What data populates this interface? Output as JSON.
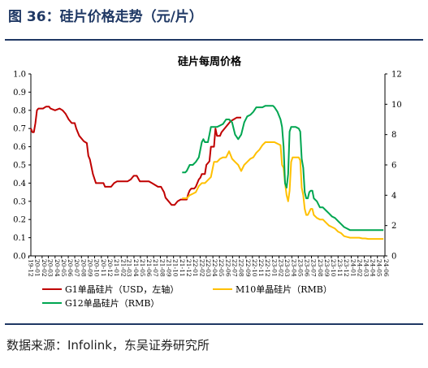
{
  "figure": {
    "title": "图 36：硅片价格走势（元/片）",
    "source": "数据来源：Infolink，东吴证券研究所"
  },
  "chart_data": {
    "type": "line",
    "title": "硅片每周价格",
    "x_date_range": [
      "2019-12-11",
      "2024-06-05"
    ],
    "xticks": [
      "19-12",
      "20-01",
      "20-02",
      "20-03",
      "20-04",
      "20-05",
      "20-06",
      "20-07",
      "20-08",
      "20-09",
      "20-10",
      "20-11",
      "20-12",
      "21-01",
      "21-02",
      "21-03",
      "21-04",
      "21-05",
      "21-06",
      "21-07",
      "21-08",
      "21-09",
      "21-10",
      "21-11",
      "21-12",
      "22-01",
      "22-02",
      "22-03",
      "22-04",
      "22-05",
      "22-06",
      "22-07",
      "22-08",
      "22-09",
      "22-10",
      "22-11",
      "22-12",
      "23-01",
      "23-02",
      "23-03",
      "23-04",
      "23-05",
      "23-06",
      "23-07",
      "23-08",
      "23-09",
      "23-10",
      "23-11",
      "23-12",
      "24-01",
      "24-02",
      "24-03",
      "24-04",
      "24-05",
      "24-06"
    ],
    "y_left": {
      "min": 0,
      "max": 1.0,
      "ticks": [
        "0.0",
        "0.1",
        "0.2",
        "0.3",
        "0.4",
        "0.5",
        "0.6",
        "0.7",
        "0.8",
        "0.9",
        "1.0"
      ]
    },
    "y_right": {
      "min": 0,
      "max": 12,
      "ticks": [
        "0",
        "2",
        "4",
        "6",
        "8",
        "10",
        "12"
      ]
    },
    "grid": false,
    "legend_position": "bottom",
    "series": [
      {
        "name": "G1单晶硅片（USD，左轴）",
        "axis": "left",
        "color": "#c00000",
        "points": [
          [
            "2019-12-11",
            0.7
          ],
          [
            "2019-12-18",
            0.68
          ],
          [
            "2019-12-25",
            0.68
          ],
          [
            "2020-01-01",
            0.73
          ],
          [
            "2020-01-08",
            0.8
          ],
          [
            "2020-01-15",
            0.81
          ],
          [
            "2020-02-05",
            0.81
          ],
          [
            "2020-02-19",
            0.82
          ],
          [
            "2020-03-04",
            0.82
          ],
          [
            "2020-03-11",
            0.81
          ],
          [
            "2020-04-01",
            0.8
          ],
          [
            "2020-04-22",
            0.81
          ],
          [
            "2020-05-06",
            0.8
          ],
          [
            "2020-05-13",
            0.79
          ],
          [
            "2020-05-20",
            0.78
          ],
          [
            "2020-06-03",
            0.75
          ],
          [
            "2020-06-17",
            0.73
          ],
          [
            "2020-07-01",
            0.73
          ],
          [
            "2020-07-08",
            0.7
          ],
          [
            "2020-07-22",
            0.66
          ],
          [
            "2020-08-12",
            0.63
          ],
          [
            "2020-08-26",
            0.62
          ],
          [
            "2020-09-02",
            0.55
          ],
          [
            "2020-09-09",
            0.53
          ],
          [
            "2020-09-23",
            0.45
          ],
          [
            "2020-10-07",
            0.4
          ],
          [
            "2020-10-28",
            0.4
          ],
          [
            "2020-11-11",
            0.4
          ],
          [
            "2020-11-18",
            0.38
          ],
          [
            "2020-12-02",
            0.38
          ],
          [
            "2020-12-16",
            0.38
          ],
          [
            "2020-12-30",
            0.4
          ],
          [
            "2021-01-13",
            0.41
          ],
          [
            "2021-02-10",
            0.41
          ],
          [
            "2021-03-03",
            0.41
          ],
          [
            "2021-03-17",
            0.42
          ],
          [
            "2021-03-31",
            0.44
          ],
          [
            "2021-04-14",
            0.44
          ],
          [
            "2021-04-28",
            0.41
          ],
          [
            "2021-05-26",
            0.41
          ],
          [
            "2021-06-09",
            0.41
          ],
          [
            "2021-06-23",
            0.4
          ],
          [
            "2021-07-07",
            0.39
          ],
          [
            "2021-07-21",
            0.38
          ],
          [
            "2021-08-04",
            0.38
          ],
          [
            "2021-08-18",
            0.35
          ],
          [
            "2021-08-25",
            0.32
          ],
          [
            "2021-09-08",
            0.3
          ],
          [
            "2021-09-22",
            0.28
          ],
          [
            "2021-10-06",
            0.28
          ],
          [
            "2021-10-20",
            0.3
          ],
          [
            "2021-11-03",
            0.31
          ],
          [
            "2021-11-17",
            0.31
          ],
          [
            "2021-12-01",
            0.31
          ],
          [
            "2021-12-08",
            0.34
          ],
          [
            "2021-12-15",
            0.36
          ],
          [
            "2021-12-22",
            0.37
          ],
          [
            "2022-01-05",
            0.37
          ],
          [
            "2022-01-12",
            0.38
          ],
          [
            "2022-01-26",
            0.42
          ],
          [
            "2022-02-02",
            0.43
          ],
          [
            "2022-02-09",
            0.45
          ],
          [
            "2022-02-23",
            0.45
          ],
          [
            "2022-03-02",
            0.5
          ],
          [
            "2022-03-16",
            0.52
          ],
          [
            "2022-03-23",
            0.6
          ],
          [
            "2022-04-06",
            0.6
          ],
          [
            "2022-04-13",
            0.7
          ],
          [
            "2022-04-20",
            0.66
          ],
          [
            "2022-05-04",
            0.66
          ],
          [
            "2022-05-11",
            0.68
          ],
          [
            "2022-05-25",
            0.7
          ],
          [
            "2022-06-08",
            0.72
          ],
          [
            "2022-06-22",
            0.74
          ],
          [
            "2022-07-06",
            0.75
          ],
          [
            "2022-07-20",
            0.76
          ],
          [
            "2022-07-27",
            0.76
          ],
          [
            "2022-08-10",
            0.76
          ]
        ]
      },
      {
        "name": "M10单晶硅片（RMB）",
        "axis": "right",
        "color": "#ffc000",
        "points": [
          [
            "2021-11-10",
            3.8
          ],
          [
            "2021-11-24",
            3.8
          ],
          [
            "2021-12-01",
            3.8
          ],
          [
            "2021-12-15",
            4.0
          ],
          [
            "2021-12-29",
            4.1
          ],
          [
            "2022-01-12",
            4.2
          ],
          [
            "2022-01-26",
            4.6
          ],
          [
            "2022-02-09",
            4.8
          ],
          [
            "2022-02-23",
            4.8
          ],
          [
            "2022-03-09",
            5.0
          ],
          [
            "2022-03-23",
            5.2
          ],
          [
            "2022-04-06",
            6.2
          ],
          [
            "2022-04-20",
            6.2
          ],
          [
            "2022-05-04",
            6.4
          ],
          [
            "2022-05-18",
            6.5
          ],
          [
            "2022-06-01",
            6.5
          ],
          [
            "2022-06-15",
            6.9
          ],
          [
            "2022-06-29",
            6.4
          ],
          [
            "2022-07-13",
            6.2
          ],
          [
            "2022-07-27",
            6.0
          ],
          [
            "2022-08-10",
            5.6
          ],
          [
            "2022-08-24",
            6.0
          ],
          [
            "2022-09-07",
            6.2
          ],
          [
            "2022-09-21",
            6.4
          ],
          [
            "2022-10-05",
            6.5
          ],
          [
            "2022-10-19",
            6.8
          ],
          [
            "2022-11-02",
            7.0
          ],
          [
            "2022-11-16",
            7.3
          ],
          [
            "2022-11-30",
            7.5
          ],
          [
            "2022-12-14",
            7.5
          ],
          [
            "2022-12-28",
            7.5
          ],
          [
            "2023-01-11",
            7.5
          ],
          [
            "2023-01-25",
            7.4
          ],
          [
            "2023-02-08",
            7.3
          ],
          [
            "2023-02-15",
            6.0
          ],
          [
            "2023-02-22",
            5.8
          ],
          [
            "2023-03-01",
            4.8
          ],
          [
            "2023-03-08",
            4.0
          ],
          [
            "2023-03-15",
            3.6
          ],
          [
            "2023-03-22",
            4.3
          ],
          [
            "2023-03-29",
            6.2
          ],
          [
            "2023-04-05",
            6.5
          ],
          [
            "2023-04-19",
            6.5
          ],
          [
            "2023-05-03",
            6.5
          ],
          [
            "2023-05-10",
            6.3
          ],
          [
            "2023-05-17",
            4.5
          ],
          [
            "2023-05-24",
            4.0
          ],
          [
            "2023-05-31",
            3.1
          ],
          [
            "2023-06-07",
            2.7
          ],
          [
            "2023-06-14",
            2.7
          ],
          [
            "2023-06-21",
            2.9
          ],
          [
            "2023-06-28",
            3.1
          ],
          [
            "2023-07-05",
            3.1
          ],
          [
            "2023-07-12",
            2.7
          ],
          [
            "2023-07-26",
            2.5
          ],
          [
            "2023-08-09",
            2.4
          ],
          [
            "2023-08-23",
            2.4
          ],
          [
            "2023-09-06",
            2.2
          ],
          [
            "2023-09-20",
            2.0
          ],
          [
            "2023-10-04",
            1.9
          ],
          [
            "2023-10-18",
            1.8
          ],
          [
            "2023-11-01",
            1.6
          ],
          [
            "2023-11-15",
            1.5
          ],
          [
            "2023-11-29",
            1.3
          ],
          [
            "2023-12-13",
            1.25
          ],
          [
            "2023-12-27",
            1.2
          ],
          [
            "2024-01-10",
            1.2
          ],
          [
            "2024-01-24",
            1.2
          ],
          [
            "2024-02-07",
            1.2
          ],
          [
            "2024-02-21",
            1.15
          ],
          [
            "2024-03-06",
            1.15
          ],
          [
            "2024-03-20",
            1.12
          ],
          [
            "2024-04-03",
            1.12
          ],
          [
            "2024-04-17",
            1.12
          ],
          [
            "2024-05-01",
            1.12
          ],
          [
            "2024-05-15",
            1.12
          ],
          [
            "2024-05-29",
            1.12
          ]
        ]
      },
      {
        "name": "G12单晶硅片（RMB）",
        "axis": "right",
        "color": "#00a651",
        "points": [
          [
            "2021-11-10",
            5.5
          ],
          [
            "2021-11-24",
            5.5
          ],
          [
            "2021-12-01",
            5.6
          ],
          [
            "2021-12-15",
            6.0
          ],
          [
            "2021-12-29",
            6.0
          ],
          [
            "2022-01-12",
            6.2
          ],
          [
            "2022-01-26",
            6.5
          ],
          [
            "2022-02-09",
            7.5
          ],
          [
            "2022-02-16",
            7.7
          ],
          [
            "2022-02-23",
            7.5
          ],
          [
            "2022-03-09",
            7.5
          ],
          [
            "2022-03-16",
            8.0
          ],
          [
            "2022-03-23",
            8.5
          ],
          [
            "2022-04-06",
            8.5
          ],
          [
            "2022-04-20",
            8.5
          ],
          [
            "2022-05-04",
            8.6
          ],
          [
            "2022-05-18",
            8.7
          ],
          [
            "2022-06-01",
            9.0
          ],
          [
            "2022-06-15",
            9.0
          ],
          [
            "2022-06-29",
            8.8
          ],
          [
            "2022-07-13",
            8.0
          ],
          [
            "2022-07-27",
            7.7
          ],
          [
            "2022-08-10",
            8.0
          ],
          [
            "2022-08-24",
            8.8
          ],
          [
            "2022-09-07",
            9.2
          ],
          [
            "2022-09-21",
            9.3
          ],
          [
            "2022-10-05",
            9.5
          ],
          [
            "2022-10-19",
            9.8
          ],
          [
            "2022-11-02",
            9.8
          ],
          [
            "2022-11-16",
            9.8
          ],
          [
            "2022-11-30",
            9.9
          ],
          [
            "2022-12-14",
            9.9
          ],
          [
            "2022-12-28",
            9.9
          ],
          [
            "2023-01-04",
            9.9
          ],
          [
            "2023-01-11",
            9.8
          ],
          [
            "2023-01-25",
            9.5
          ],
          [
            "2023-02-08",
            9.0
          ],
          [
            "2023-02-15",
            8.5
          ],
          [
            "2023-02-22",
            7.2
          ],
          [
            "2023-03-01",
            4.8
          ],
          [
            "2023-03-08",
            4.5
          ],
          [
            "2023-03-15",
            5.4
          ],
          [
            "2023-03-22",
            8.2
          ],
          [
            "2023-03-29",
            8.5
          ],
          [
            "2023-04-05",
            8.5
          ],
          [
            "2023-04-19",
            8.5
          ],
          [
            "2023-05-03",
            8.4
          ],
          [
            "2023-05-10",
            8.2
          ],
          [
            "2023-05-17",
            6.4
          ],
          [
            "2023-05-24",
            5.8
          ],
          [
            "2023-05-31",
            4.2
          ],
          [
            "2023-06-07",
            3.8
          ],
          [
            "2023-06-14",
            3.8
          ],
          [
            "2023-06-21",
            4.2
          ],
          [
            "2023-06-28",
            4.3
          ],
          [
            "2023-07-05",
            4.3
          ],
          [
            "2023-07-12",
            3.8
          ],
          [
            "2023-07-26",
            3.6
          ],
          [
            "2023-08-09",
            3.2
          ],
          [
            "2023-08-23",
            3.2
          ],
          [
            "2023-09-06",
            3.0
          ],
          [
            "2023-09-20",
            2.8
          ],
          [
            "2023-10-04",
            2.6
          ],
          [
            "2023-10-18",
            2.5
          ],
          [
            "2023-11-01",
            2.3
          ],
          [
            "2023-11-15",
            2.1
          ],
          [
            "2023-11-29",
            1.9
          ],
          [
            "2023-12-13",
            1.8
          ],
          [
            "2023-12-27",
            1.7
          ],
          [
            "2024-01-10",
            1.7
          ],
          [
            "2024-01-24",
            1.7
          ],
          [
            "2024-02-07",
            1.7
          ],
          [
            "2024-02-21",
            1.7
          ],
          [
            "2024-03-06",
            1.7
          ],
          [
            "2024-03-20",
            1.7
          ],
          [
            "2024-04-03",
            1.7
          ],
          [
            "2024-04-17",
            1.7
          ],
          [
            "2024-05-01",
            1.7
          ],
          [
            "2024-05-15",
            1.7
          ],
          [
            "2024-05-29",
            1.7
          ]
        ]
      }
    ]
  }
}
